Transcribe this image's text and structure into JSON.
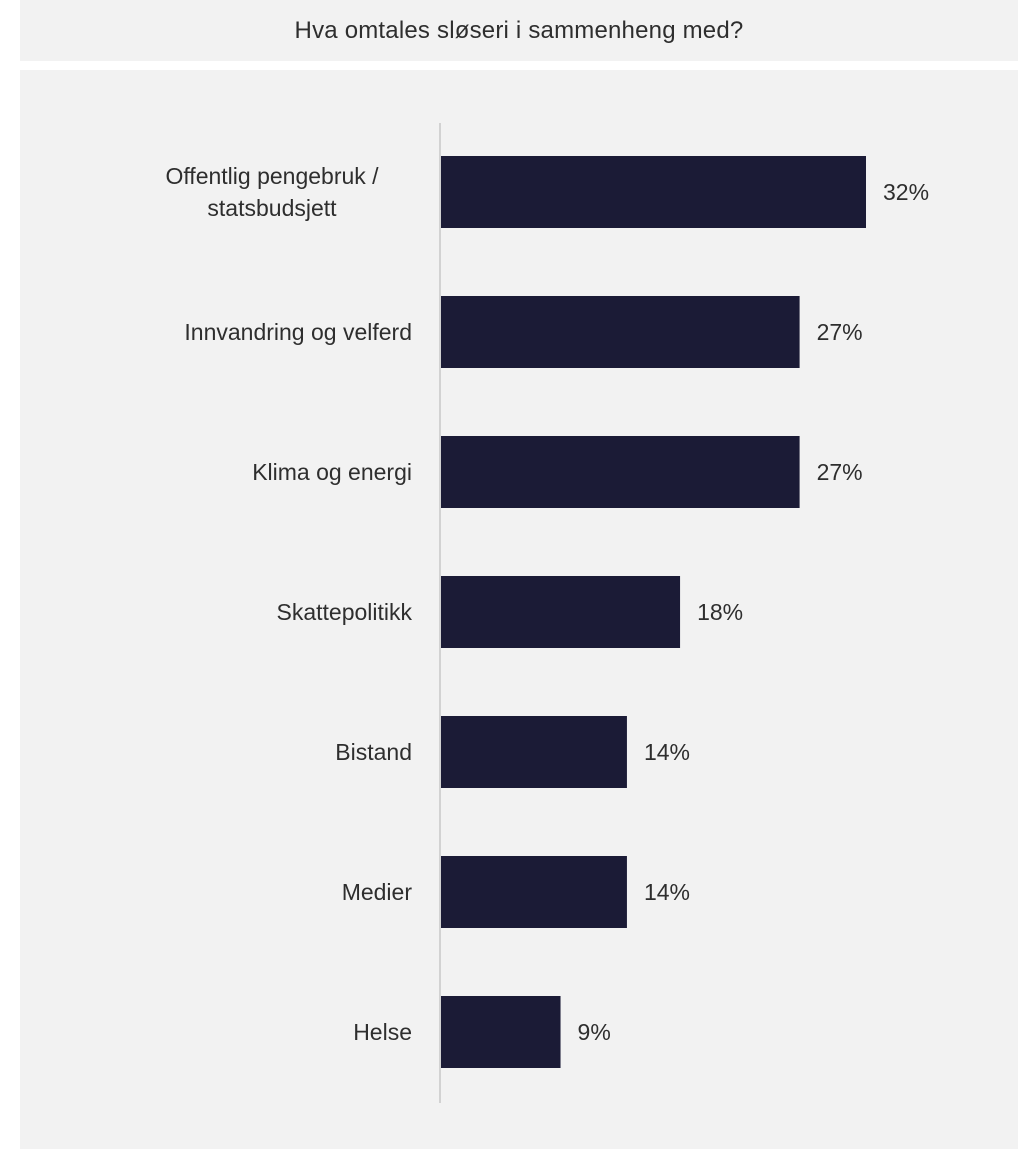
{
  "title": "Hva omtales sløseri i sammenheng med?",
  "colors": {
    "bar": "#1b1b36",
    "background": "#f2f2f2",
    "axis": "#c8c8c8",
    "text": "#2e2e2e"
  },
  "chart_data": {
    "type": "bar",
    "orientation": "horizontal",
    "title": "Hva omtales sløseri i sammenheng med?",
    "categories": [
      [
        "Offentlig pengebruk /",
        "statsbudsjett"
      ],
      [
        "Innvandring og velferd"
      ],
      [
        "Klima og energi"
      ],
      [
        "Skattepolitikk"
      ],
      [
        "Bistand"
      ],
      [
        "Medier"
      ],
      [
        "Helse"
      ]
    ],
    "values": [
      32,
      27,
      27,
      18,
      14,
      14,
      9
    ],
    "value_labels": [
      "32%",
      "27%",
      "27%",
      "18%",
      "14%",
      "14%",
      "9%"
    ],
    "xlim": [
      0,
      32
    ],
    "grid": false,
    "legend": "none"
  }
}
